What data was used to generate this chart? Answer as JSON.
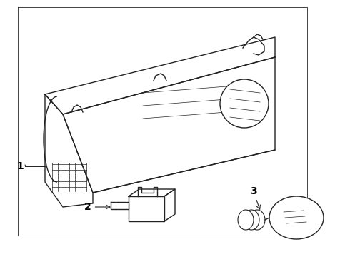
{
  "bg_color": "#ffffff",
  "line_color": "#222222",
  "label_color": "#000000",
  "lw_main": 1.0,
  "lw_thin": 0.5,
  "label_1": "1",
  "label_2": "2",
  "label_3": "3"
}
